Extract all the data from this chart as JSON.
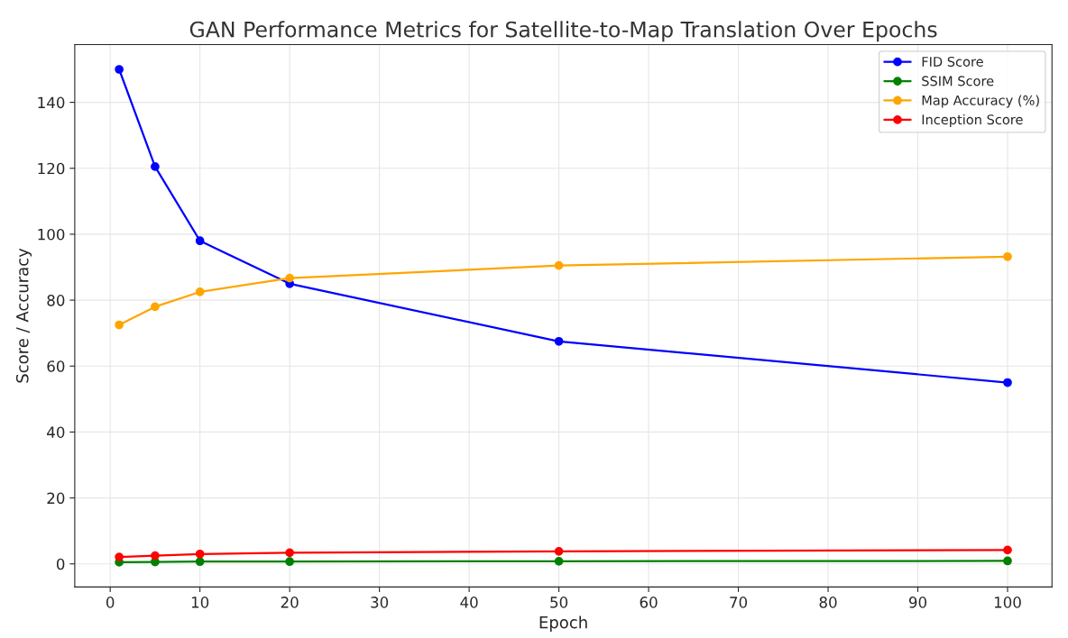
{
  "chart_data": {
    "type": "line",
    "title": "GAN Performance Metrics for Satellite-to-Map Translation Over Epochs",
    "xlabel": "Epoch",
    "ylabel": "Score / Accuracy",
    "x": [
      1,
      5,
      10,
      20,
      50,
      100
    ],
    "series": [
      {
        "name": "FID Score",
        "color": "#0000ff",
        "values": [
          150,
          120.5,
          98,
          85,
          67.5,
          55
        ]
      },
      {
        "name": "SSIM Score",
        "color": "#008000",
        "values": [
          0.5,
          0.6,
          0.7,
          0.7,
          0.8,
          0.9
        ]
      },
      {
        "name": "Map Accuracy (%)",
        "color": "#ffa500",
        "values": [
          72.5,
          78,
          82.5,
          86.7,
          90.5,
          93.2
        ]
      },
      {
        "name": "Inception Score",
        "color": "#ff0000",
        "values": [
          2.1,
          2.5,
          3.0,
          3.4,
          3.8,
          4.2
        ]
      }
    ],
    "xlim": [
      -3.95,
      104.95
    ],
    "xticks": [
      0,
      10,
      20,
      30,
      40,
      50,
      60,
      70,
      80,
      90,
      100
    ],
    "ylim": [
      -7,
      157.5
    ],
    "yticks": [
      0,
      20,
      40,
      60,
      80,
      100,
      120,
      140
    ],
    "grid": true,
    "legend": "top right",
    "marker": "circle",
    "line_style": "solid"
  }
}
